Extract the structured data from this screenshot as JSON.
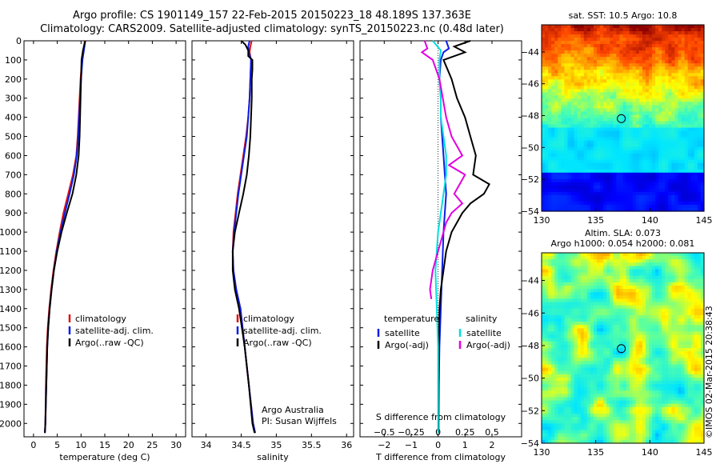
{
  "title_line1": "Argo profile: CS 1901149_157 22-Feb-2015 20150223_18 48.189S 137.363E",
  "title_line2": "Climatology: CARS2009. Satellite-adjusted climatology: synTS_20150223.nc (0.48d later)",
  "copyright": "©IMOS 02-Mar-2015 20:38:43",
  "colors": {
    "climatology": "#e01010",
    "satellite_clim": "#0a1ee6",
    "argo": "#000000",
    "sal_satellite": "#00e0e0",
    "sal_argo": "#e000e0"
  },
  "chart_data": [
    {
      "type": "line",
      "panel": "temperature",
      "xlabel": "temperature (deg C)",
      "xlim": [
        -2,
        32
      ],
      "xticks": [
        0,
        5,
        10,
        15,
        20,
        25,
        30
      ],
      "ylim": [
        2070,
        0
      ],
      "yticks": [
        0,
        100,
        200,
        300,
        400,
        500,
        600,
        700,
        800,
        900,
        1000,
        1100,
        1200,
        1300,
        1400,
        1500,
        1600,
        1700,
        1800,
        1900,
        2000
      ],
      "legend": [
        "climatology",
        "satellite-adj. clim.",
        "Argo(..raw -QC)"
      ],
      "series": [
        {
          "name": "climatology",
          "depth": [
            0,
            50,
            100,
            200,
            300,
            400,
            500,
            600,
            700,
            800,
            900,
            1000,
            1100,
            1200,
            1300,
            1400,
            1500,
            1600,
            1800,
            2000,
            2050
          ],
          "values": [
            10.8,
            10.5,
            10.2,
            9.9,
            9.7,
            9.5,
            9.3,
            9.0,
            8.3,
            7.3,
            6.3,
            5.5,
            4.8,
            4.2,
            3.7,
            3.3,
            3.0,
            2.8,
            2.6,
            2.5,
            2.4
          ]
        },
        {
          "name": "satellite-adj. clim.",
          "depth": [
            0,
            50,
            100,
            200,
            300,
            400,
            500,
            600,
            700,
            800,
            900,
            1000,
            1100,
            1200,
            1300,
            1400,
            1500,
            1600,
            1800,
            2000,
            2050
          ],
          "values": [
            10.9,
            10.6,
            10.3,
            10.0,
            9.8,
            9.6,
            9.4,
            9.1,
            8.5,
            7.6,
            6.6,
            5.7,
            4.9,
            4.3,
            3.8,
            3.4,
            3.1,
            2.9,
            2.7,
            2.5,
            2.4
          ]
        },
        {
          "name": "Argo(..raw -QC)",
          "depth": [
            0,
            50,
            100,
            200,
            300,
            400,
            500,
            600,
            700,
            800,
            900,
            1000,
            1100,
            1200,
            1300,
            1400,
            1500,
            1600,
            1800,
            2000,
            2050
          ],
          "values": [
            10.9,
            10.4,
            10.1,
            10.0,
            9.9,
            9.8,
            9.7,
            9.5,
            9.0,
            8.2,
            7.0,
            5.9,
            5.0,
            4.3,
            3.8,
            3.4,
            3.1,
            2.9,
            2.7,
            2.5,
            2.4
          ]
        }
      ]
    },
    {
      "type": "line",
      "panel": "salinity",
      "xlabel": "salinity",
      "xlim": [
        33.8,
        36.1
      ],
      "xticks": [
        34,
        34.5,
        35,
        35.5,
        36
      ],
      "ylim": [
        2070,
        0
      ],
      "legend": [
        "climatology",
        "satellite-adj. clim.",
        "Argo(..raw -QC)"
      ],
      "annotation": [
        "Argo Australia",
        "PI: Susan Wijffels"
      ],
      "series": [
        {
          "name": "climatology",
          "depth": [
            0,
            30,
            60,
            100,
            200,
            300,
            400,
            500,
            600,
            700,
            800,
            900,
            1000,
            1100,
            1200,
            1300,
            1400,
            1600,
            1800,
            2000,
            2050
          ],
          "values": [
            34.65,
            34.63,
            34.62,
            34.64,
            34.63,
            34.62,
            34.6,
            34.57,
            34.53,
            34.49,
            34.45,
            34.42,
            34.39,
            34.38,
            34.39,
            34.43,
            34.49,
            34.55,
            34.61,
            34.67,
            34.7
          ]
        },
        {
          "name": "satellite-adj. clim.",
          "depth": [
            0,
            30,
            60,
            100,
            200,
            300,
            400,
            500,
            600,
            700,
            800,
            900,
            1000,
            1100,
            1200,
            1300,
            1400,
            1600,
            1800,
            2000,
            2050
          ],
          "values": [
            34.62,
            34.6,
            34.61,
            34.64,
            34.63,
            34.62,
            34.6,
            34.58,
            34.54,
            34.5,
            34.46,
            34.43,
            34.4,
            34.38,
            34.39,
            34.43,
            34.49,
            34.55,
            34.61,
            34.67,
            34.7
          ]
        },
        {
          "name": "Argo(..raw -QC)",
          "depth": [
            0,
            20,
            50,
            80,
            100,
            150,
            200,
            300,
            400,
            500,
            600,
            700,
            800,
            900,
            1000,
            1100,
            1200,
            1300,
            1400,
            1600,
            1800,
            2000,
            2050
          ],
          "values": [
            34.5,
            34.56,
            34.6,
            34.6,
            34.66,
            34.66,
            34.65,
            34.65,
            34.64,
            34.63,
            34.61,
            34.58,
            34.53,
            34.47,
            34.41,
            34.38,
            34.38,
            34.41,
            34.47,
            34.55,
            34.61,
            34.66,
            34.69
          ]
        }
      ]
    },
    {
      "type": "line",
      "panel": "difference",
      "xlabel": "T difference from climatology",
      "xlabel_top": "S difference from climatology",
      "xlim": [
        -2.9,
        3.1
      ],
      "xticks": [
        -2,
        -1,
        0,
        1,
        2
      ],
      "xticks_top_labels": [
        "-0.5",
        "-0.25",
        "0",
        "0.25",
        "0.5"
      ],
      "ylim": [
        2070,
        0
      ],
      "legend_titles": [
        "temperature",
        "salinity"
      ],
      "legend": [
        "satellite",
        "Argo(-adj)",
        "satellite",
        "Argo(-adj)"
      ],
      "series": [
        {
          "name": "temperature satellite",
          "depth": [
            0,
            40,
            60,
            100,
            200,
            300,
            400,
            500,
            600,
            700,
            800,
            900,
            1000,
            1200,
            1400,
            1600,
            1800,
            2000,
            2050
          ],
          "values": [
            0.3,
            0.4,
            0.2,
            0.1,
            0.05,
            0.1,
            0.1,
            0.15,
            0.2,
            0.25,
            0.3,
            0.25,
            0.2,
            0.15,
            0.1,
            0.05,
            0.03,
            0.02,
            0.02
          ]
        },
        {
          "name": "temperature Argo(-adj)",
          "depth": [
            0,
            30,
            60,
            100,
            200,
            300,
            400,
            500,
            600,
            700,
            750,
            800,
            850,
            900,
            1000,
            1100,
            1200,
            1300,
            1400,
            1600,
            1800,
            2000,
            2050
          ],
          "values": [
            1.2,
            0.6,
            1.0,
            0.2,
            0.5,
            0.7,
            1.0,
            1.2,
            1.4,
            1.3,
            1.9,
            1.7,
            1.2,
            0.9,
            0.5,
            0.3,
            0.2,
            0.1,
            0.05,
            0.03,
            0.02,
            0.01,
            0.01
          ]
        },
        {
          "name": "salinity satellite",
          "depth": [
            0,
            50,
            100,
            200,
            300,
            400,
            500,
            600,
            700,
            800,
            900,
            1000,
            1200,
            1400,
            1600,
            1800,
            2000,
            2050
          ],
          "values": [
            -0.2,
            0.1,
            0.05,
            0.05,
            0.1,
            0.1,
            0.2,
            0.3,
            0.3,
            0.2,
            0.1,
            0.0,
            -0.1,
            -0.05,
            0.0,
            0.0,
            0.0,
            0.0
          ]
        },
        {
          "name": "salinity Argo(-adj)",
          "depth": [
            0,
            40,
            60,
            100,
            200,
            400,
            500,
            600,
            650,
            700,
            750,
            800,
            850,
            900,
            950,
            1000,
            1100,
            1200,
            1300,
            1350
          ],
          "values": [
            -0.5,
            -0.4,
            -0.6,
            -0.2,
            0.05,
            0.3,
            0.5,
            0.9,
            0.4,
            1.0,
            0.8,
            0.6,
            0.9,
            0.5,
            0.3,
            0.2,
            0.0,
            -0.2,
            -0.3,
            -0.25
          ]
        }
      ]
    },
    {
      "type": "heatmap",
      "panel": "sst_map",
      "title": "sat. SST: 10.5 Argo: 10.8",
      "xlim": [
        130,
        145
      ],
      "ylim": [
        -54,
        -42.3
      ],
      "xticks": [
        130,
        135,
        140,
        145
      ],
      "yticks": [
        -44,
        -46,
        -48,
        -50,
        -52,
        -54
      ],
      "marker": {
        "lon": 137.363,
        "lat": -48.189
      }
    },
    {
      "type": "heatmap",
      "panel": "sla_map",
      "title": [
        "Altim. SLA: 0.073",
        "Argo h1000: 0.054 h2000: 0.081"
      ],
      "xlim": [
        130,
        145
      ],
      "ylim": [
        -54,
        -42.3
      ],
      "xticks": [
        130,
        135,
        140,
        145
      ],
      "yticks": [
        -44,
        -46,
        -48,
        -50,
        -52,
        -54
      ],
      "marker": {
        "lon": 137.363,
        "lat": -48.189
      }
    }
  ]
}
